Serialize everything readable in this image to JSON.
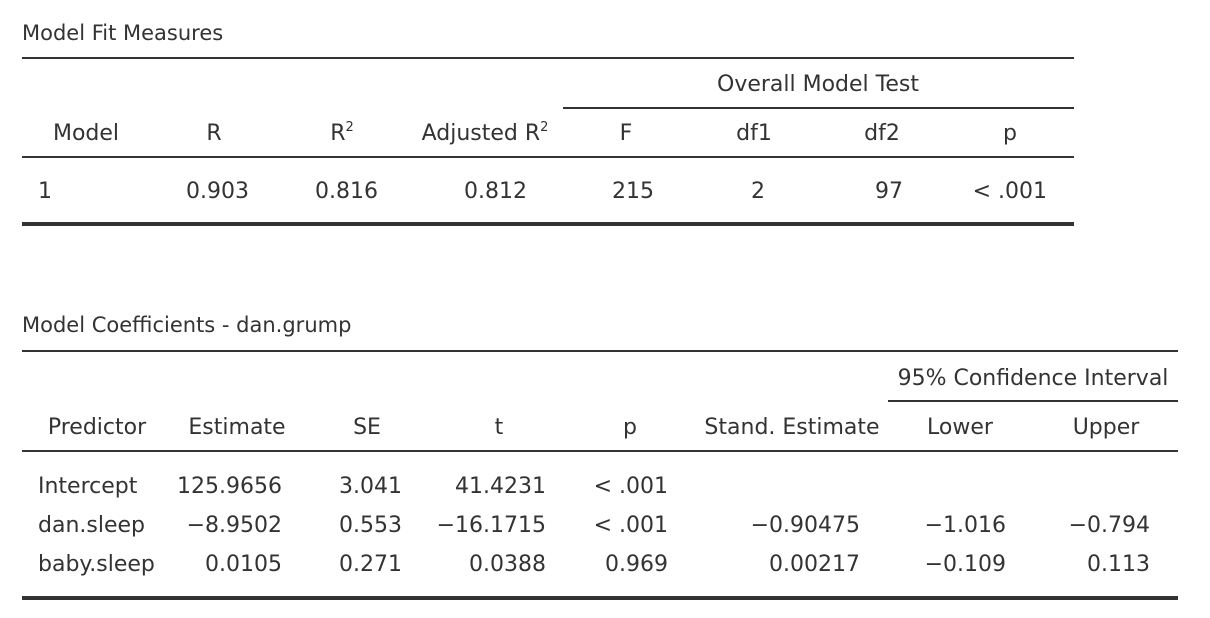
{
  "model_fit": {
    "title": "Model Fit Measures",
    "group_header": "Overall Model Test",
    "headers": {
      "model": "Model",
      "r": "R",
      "r2_base": "R",
      "r2_sup": "2",
      "adj_r2_base": "Adjusted R",
      "adj_r2_sup": "2",
      "f": "F",
      "df1": "df1",
      "df2": "df2",
      "p": "p"
    },
    "rows": [
      {
        "model": "1",
        "r": "0.903",
        "r2": "0.816",
        "adj_r2": "0.812",
        "f": "215",
        "df1": "2",
        "df2": "97",
        "p": "< .001"
      }
    ]
  },
  "coefficients": {
    "title": "Model Coefficients - dan.grump",
    "group_header": "95% Confidence Interval",
    "headers": {
      "predictor": "Predictor",
      "estimate": "Estimate",
      "se": "SE",
      "t": "t",
      "p": "p",
      "std_estimate": "Stand. Estimate",
      "lower": "Lower",
      "upper": "Upper"
    },
    "rows": [
      {
        "predictor": "Intercept",
        "estimate": "125.9656",
        "se": "3.041",
        "t": "41.4231",
        "p": "< .001",
        "std_estimate": "",
        "lower": "",
        "upper": ""
      },
      {
        "predictor": "dan.sleep",
        "estimate": "−8.9502",
        "se": "0.553",
        "t": "−16.1715",
        "p": "< .001",
        "std_estimate": "−0.90475",
        "lower": "−1.016",
        "upper": "−0.794"
      },
      {
        "predictor": "baby.sleep",
        "estimate": "0.0105",
        "se": "0.271",
        "t": "0.0388",
        "p": "0.969",
        "std_estimate": "0.00217",
        "lower": "−0.109",
        "upper": "0.113"
      }
    ]
  }
}
